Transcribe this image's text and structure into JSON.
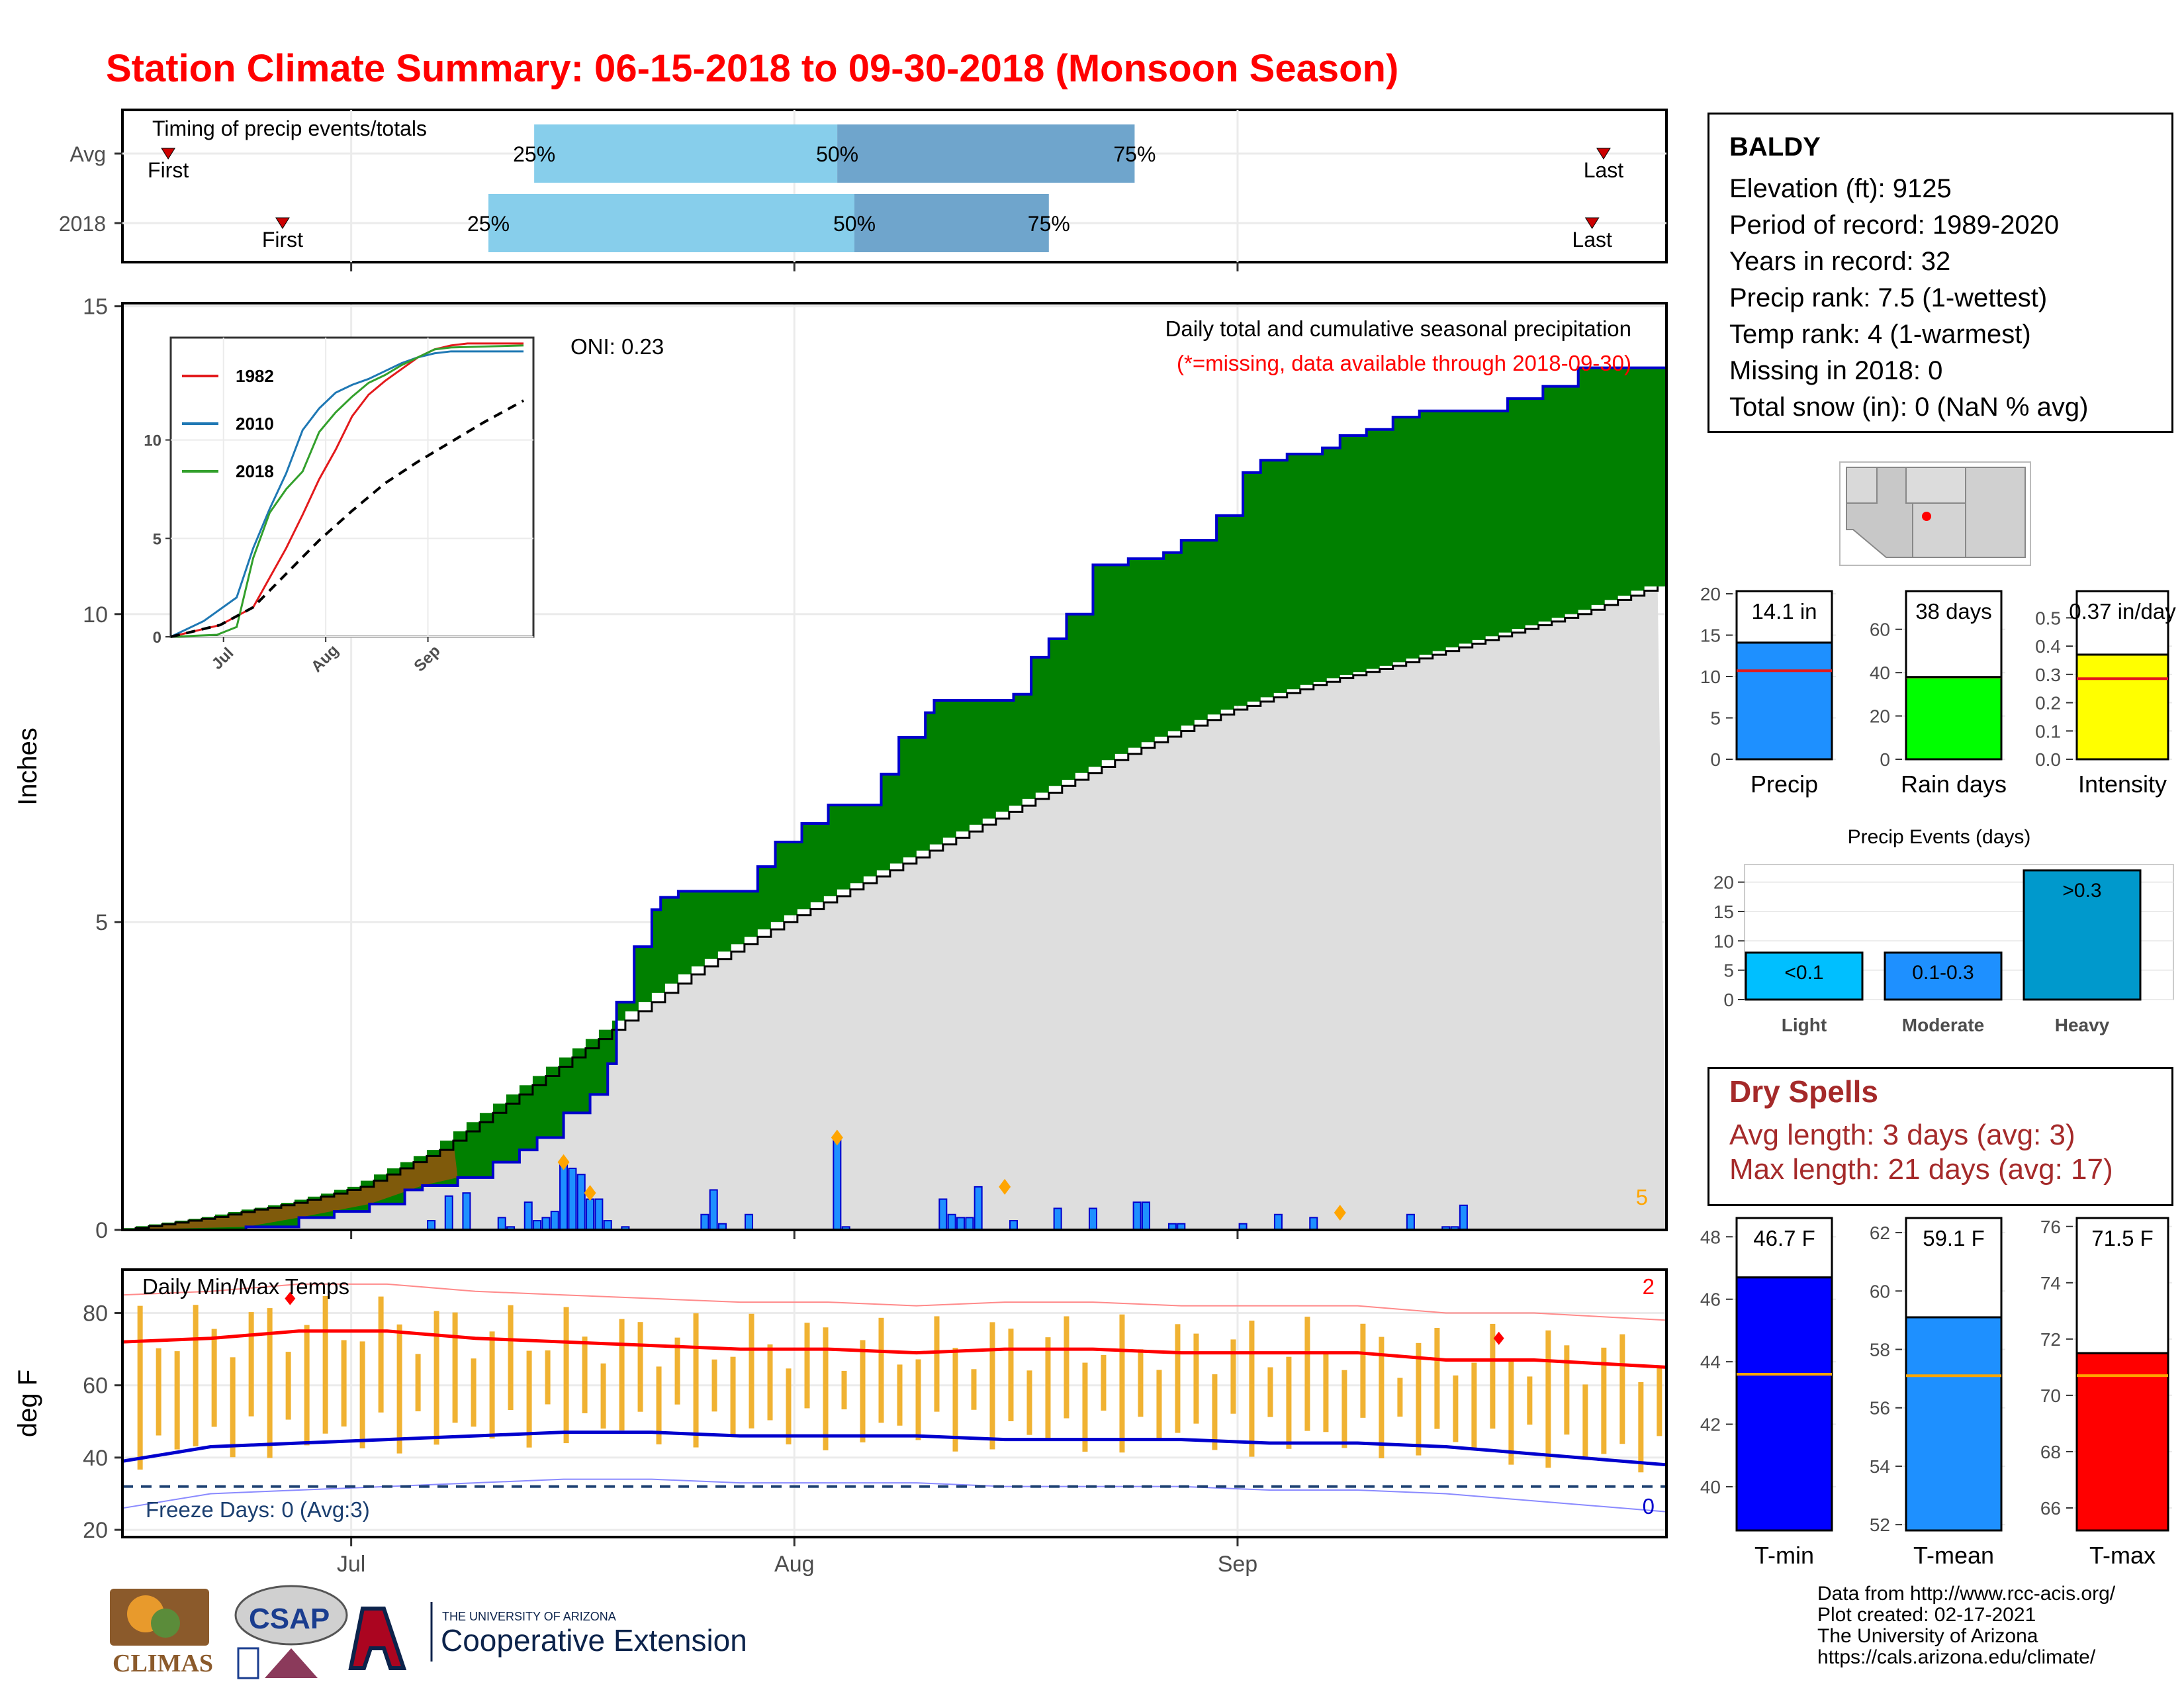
{
  "title": "Station Climate Summary: 06-15-2018 to 09-30-2018 (Monsoon Season)",
  "timing": {
    "heading": "Timing of precip events/totals",
    "rows": [
      {
        "label": "Avg",
        "first_label": "First",
        "last_label": "Last",
        "first": 8,
        "p25": 72,
        "p50": 125,
        "p75": 177,
        "last": 259
      },
      {
        "label": "2018",
        "first_label": "First",
        "last_label": "Last",
        "first": 28,
        "p25": 64,
        "p50": 128,
        "p75": 162,
        "last": 257
      }
    ],
    "pct_labels": [
      "25%",
      "50%",
      "75%"
    ]
  },
  "station": {
    "name": "BALDY",
    "lines": [
      "Elevation (ft): 9125",
      "Period of record: 1989-2020",
      "Years in record: 32",
      "Precip rank: 7.5 (1-wettest)",
      "Temp rank: 4 (1-warmest)",
      "Missing in 2018: 0",
      "Total snow (in): 0 (NaN % avg)"
    ]
  },
  "chart_data": [
    {
      "type": "area",
      "title": "Daily total and cumulative seasonal precipitation",
      "subtitle": "(*=missing, data available through 2018-09-30)",
      "annotation": "ONI: 0.23",
      "corner_count": "5",
      "ylabel": "Inches",
      "ylim": [
        0,
        15
      ],
      "yticks": [
        0,
        5,
        10,
        15
      ],
      "xticks": [
        "Jul",
        "Aug",
        "Sep"
      ],
      "cumulative_2018": [
        [
          0,
          0
        ],
        [
          14,
          0.05
        ],
        [
          20,
          0.2
        ],
        [
          24,
          0.3
        ],
        [
          28,
          0.42
        ],
        [
          32,
          0.65
        ],
        [
          34,
          0.72
        ],
        [
          38,
          0.85
        ],
        [
          42,
          1.1
        ],
        [
          45,
          1.3
        ],
        [
          47,
          1.5
        ],
        [
          50,
          1.9
        ],
        [
          53,
          2.2
        ],
        [
          55,
          2.7
        ],
        [
          56,
          3.7
        ],
        [
          58,
          4.6
        ],
        [
          60,
          5.2
        ],
        [
          61,
          5.4
        ],
        [
          63,
          5.5
        ],
        [
          70,
          5.5
        ],
        [
          72,
          5.9
        ],
        [
          74,
          6.3
        ],
        [
          77,
          6.6
        ],
        [
          80,
          6.9
        ],
        [
          85,
          6.9
        ],
        [
          86,
          7.4
        ],
        [
          88,
          8.0
        ],
        [
          91,
          8.4
        ],
        [
          92,
          8.6
        ],
        [
          101,
          8.7
        ],
        [
          103,
          9.3
        ],
        [
          105,
          9.6
        ],
        [
          107,
          10.0
        ],
        [
          110,
          10.8
        ],
        [
          114,
          10.9
        ],
        [
          118,
          11.0
        ],
        [
          120,
          11.2
        ],
        [
          124,
          11.6
        ],
        [
          127,
          12.3
        ],
        [
          129,
          12.5
        ],
        [
          132,
          12.6
        ],
        [
          136,
          12.7
        ],
        [
          138,
          12.9
        ],
        [
          141,
          13.0
        ],
        [
          144,
          13.2
        ],
        [
          147,
          13.3
        ],
        [
          157,
          13.5
        ],
        [
          161,
          13.7
        ],
        [
          165,
          14.0
        ],
        [
          175,
          14.0
        ]
      ],
      "average_cumulative": [
        [
          0,
          0
        ],
        [
          10,
          0.2
        ],
        [
          20,
          0.45
        ],
        [
          27,
          0.7
        ],
        [
          36,
          1.3
        ],
        [
          45,
          2.2
        ],
        [
          55,
          3.2
        ],
        [
          65,
          4.2
        ],
        [
          75,
          5.0
        ],
        [
          85,
          5.7
        ],
        [
          95,
          6.4
        ],
        [
          105,
          7.1
        ],
        [
          115,
          7.8
        ],
        [
          125,
          8.4
        ],
        [
          135,
          8.85
        ],
        [
          145,
          9.2
        ],
        [
          155,
          9.6
        ],
        [
          165,
          10.0
        ],
        [
          175,
          10.5
        ]
      ],
      "daily_2018": [
        [
          35,
          0.15
        ],
        [
          37,
          0.55
        ],
        [
          39,
          0.6
        ],
        [
          43,
          0.2
        ],
        [
          44,
          0.05
        ],
        [
          46,
          0.45
        ],
        [
          47,
          0.15
        ],
        [
          48,
          0.2
        ],
        [
          49,
          0.3
        ],
        [
          50,
          1.1
        ],
        [
          51,
          1.0
        ],
        [
          52,
          0.9
        ],
        [
          53,
          0.5
        ],
        [
          54,
          0.5
        ],
        [
          55,
          0.15
        ],
        [
          57,
          0.05
        ],
        [
          66,
          0.25
        ],
        [
          67,
          0.65
        ],
        [
          68,
          0.1
        ],
        [
          71,
          0.25
        ],
        [
          81,
          1.5
        ],
        [
          82,
          0.05
        ],
        [
          93,
          0.5
        ],
        [
          94,
          0.25
        ],
        [
          95,
          0.2
        ],
        [
          96,
          0.2
        ],
        [
          97,
          0.7
        ],
        [
          101,
          0.15
        ],
        [
          106,
          0.35
        ],
        [
          110,
          0.35
        ],
        [
          115,
          0.45
        ],
        [
          116,
          0.45
        ],
        [
          119,
          0.1
        ],
        [
          120,
          0.1
        ],
        [
          127,
          0.1
        ],
        [
          131,
          0.25
        ],
        [
          135,
          0.2
        ],
        [
          146,
          0.25
        ],
        [
          150,
          0.05
        ],
        [
          151,
          0.05
        ],
        [
          152,
          0.4
        ]
      ],
      "record_markers": [
        [
          50,
          1.1
        ],
        [
          53,
          0.6
        ],
        [
          81,
          1.5
        ],
        [
          100,
          0.7
        ],
        [
          138,
          0.28
        ]
      ]
    },
    {
      "type": "line",
      "title": "",
      "xticks": [
        "Jul",
        "Aug",
        "Sep"
      ],
      "ylim": [
        0,
        15
      ],
      "yticks": [
        0,
        5,
        10
      ],
      "series": [
        {
          "name": "1982",
          "color": "#e31a1c",
          "values": [
            [
              0,
              0
            ],
            [
              15,
              0.6
            ],
            [
              25,
              1.5
            ],
            [
              30,
              3.0
            ],
            [
              35,
              4.5
            ],
            [
              40,
              6.2
            ],
            [
              45,
              8.0
            ],
            [
              50,
              9.5
            ],
            [
              55,
              11.2
            ],
            [
              60,
              12.3
            ],
            [
              65,
              13.0
            ],
            [
              70,
              13.6
            ],
            [
              75,
              14.2
            ],
            [
              80,
              14.6
            ],
            [
              85,
              14.8
            ],
            [
              90,
              14.9
            ],
            [
              107,
              14.9
            ]
          ]
        },
        {
          "name": "2010",
          "color": "#1f78b4",
          "values": [
            [
              0,
              0
            ],
            [
              10,
              0.8
            ],
            [
              20,
              2.0
            ],
            [
              25,
              4.5
            ],
            [
              30,
              6.5
            ],
            [
              35,
              8.3
            ],
            [
              40,
              10.5
            ],
            [
              45,
              11.6
            ],
            [
              50,
              12.4
            ],
            [
              55,
              12.8
            ],
            [
              60,
              13.1
            ],
            [
              65,
              13.5
            ],
            [
              70,
              13.9
            ],
            [
              75,
              14.2
            ],
            [
              80,
              14.4
            ],
            [
              85,
              14.5
            ],
            [
              107,
              14.5
            ]
          ]
        },
        {
          "name": "2018",
          "color": "#33a02c",
          "values": [
            [
              0,
              0
            ],
            [
              14,
              0.1
            ],
            [
              20,
              0.5
            ],
            [
              25,
              4.0
            ],
            [
              30,
              6.3
            ],
            [
              35,
              7.5
            ],
            [
              40,
              8.4
            ],
            [
              45,
              10.4
            ],
            [
              50,
              11.4
            ],
            [
              55,
              12.2
            ],
            [
              60,
              12.9
            ],
            [
              65,
              13.3
            ],
            [
              70,
              13.8
            ],
            [
              75,
              14.2
            ],
            [
              80,
              14.6
            ],
            [
              85,
              14.7
            ],
            [
              107,
              14.8
            ]
          ]
        },
        {
          "name": "",
          "color": "#000000",
          "dashed": true,
          "values": [
            [
              0,
              0
            ],
            [
              15,
              0.6
            ],
            [
              25,
              1.5
            ],
            [
              35,
              3.2
            ],
            [
              45,
              4.9
            ],
            [
              55,
              6.4
            ],
            [
              65,
              7.8
            ],
            [
              75,
              8.9
            ],
            [
              85,
              9.9
            ],
            [
              95,
              10.9
            ],
            [
              107,
              12.0
            ]
          ]
        }
      ]
    },
    {
      "type": "bar",
      "title": "",
      "panels": [
        {
          "label": "Precip",
          "value": 14.1,
          "value_label": "14.1 in",
          "avg": 10.7,
          "ylim": [
            0,
            20
          ],
          "yticks": [
            "0",
            "5",
            "10",
            "15",
            "20"
          ],
          "color": "#1e90ff",
          "avg_color": "#e31a1c"
        },
        {
          "label": "Rain days",
          "value": 38,
          "value_label": "38 days",
          "avg": 38,
          "ylim": [
            0,
            70
          ],
          "yticks": [
            "0",
            "20",
            "40",
            "60"
          ],
          "color": "#00ff00",
          "avg_color": "#e31a1c"
        },
        {
          "label": "Intensity",
          "value": 0.37,
          "value_label": "0.37 in/day",
          "avg": 0.285,
          "ylim": [
            0,
            0.55
          ],
          "yticks": [
            "0.0",
            "0.1",
            "0.2",
            "0.3",
            "0.4",
            "0.5"
          ],
          "color": "#ffff00",
          "avg_color": "#e31a1c"
        }
      ]
    },
    {
      "type": "bar",
      "title": "Precip Events (days)",
      "categories": [
        "Light",
        "Moderate",
        "Heavy"
      ],
      "value_labels": [
        "<0.1",
        "0.1-0.3",
        ">0.3"
      ],
      "values": [
        8,
        8,
        22
      ],
      "ylim": [
        0,
        23
      ],
      "yticks": [
        "0",
        "5",
        "10",
        "15",
        "20"
      ]
    },
    {
      "type": "bar",
      "title": "Daily Min/Max Temps",
      "corner_max_count": "2",
      "corner_min_count": "0",
      "freeze_label": "Freeze Days: 0 (Avg:3)",
      "ylabel": "deg F",
      "ylim": [
        18,
        92
      ],
      "yticks": [
        20,
        40,
        60,
        80
      ],
      "freeze_line": 32,
      "avg_max": [
        [
          0,
          72
        ],
        [
          10,
          73
        ],
        [
          20,
          75
        ],
        [
          30,
          75
        ],
        [
          40,
          73
        ],
        [
          50,
          72
        ],
        [
          60,
          71
        ],
        [
          70,
          70
        ],
        [
          80,
          70
        ],
        [
          90,
          69
        ],
        [
          100,
          70
        ],
        [
          110,
          70
        ],
        [
          120,
          69
        ],
        [
          130,
          69
        ],
        [
          140,
          69
        ],
        [
          150,
          67
        ],
        [
          160,
          67
        ],
        [
          175,
          65
        ]
      ],
      "avg_min": [
        [
          0,
          39
        ],
        [
          10,
          43
        ],
        [
          20,
          44
        ],
        [
          30,
          45
        ],
        [
          40,
          46
        ],
        [
          50,
          47
        ],
        [
          60,
          47
        ],
        [
          70,
          46
        ],
        [
          80,
          46
        ],
        [
          90,
          46
        ],
        [
          100,
          45
        ],
        [
          110,
          45
        ],
        [
          120,
          45
        ],
        [
          130,
          44
        ],
        [
          140,
          44
        ],
        [
          150,
          43
        ],
        [
          160,
          41
        ],
        [
          175,
          38
        ]
      ],
      "record_max_markers": [
        [
          19,
          84
        ],
        [
          156,
          73
        ]
      ]
    },
    {
      "type": "bar",
      "title": "",
      "panels": [
        {
          "label": "T-min",
          "value": 46.7,
          "value_label": "46.7 F",
          "avg": 43.6,
          "ylim": [
            38.6,
            48.6
          ],
          "yticks": [
            "40",
            "42",
            "44",
            "46",
            "48"
          ],
          "color": "#0000ff",
          "avg_color": "#ffa500"
        },
        {
          "label": "T-mean",
          "value": 59.1,
          "value_label": "59.1 F",
          "avg": 57.1,
          "ylim": [
            51.8,
            62.5
          ],
          "yticks": [
            "52",
            "54",
            "56",
            "58",
            "60",
            "62"
          ],
          "color": "#1e90ff",
          "avg_color": "#ffa500"
        },
        {
          "label": "T-max",
          "value": 71.5,
          "value_label": "71.5 F",
          "avg": 70.7,
          "ylim": [
            65.2,
            76.3
          ],
          "yticks": [
            "66",
            "68",
            "70",
            "72",
            "74",
            "76"
          ],
          "color": "#ff0000",
          "avg_color": "#ffa500"
        }
      ]
    }
  ],
  "dry_spells": {
    "heading": "Dry Spells",
    "avg_length": "Avg length: 3 days (avg: 3)",
    "max_length": "Max length: 21 days (avg: 17)"
  },
  "logos": {
    "climas": "CLIMAS",
    "csap": "CSAP",
    "ua_small": "THE UNIVERSITY OF ARIZONA",
    "ua_big": "Cooperative Extension"
  },
  "credits": [
    "Data from http://www.rcc-acis.org/",
    "Plot created: 02-17-2021",
    "The University of Arizona",
    "https://cals.arizona.edu/climate/"
  ]
}
